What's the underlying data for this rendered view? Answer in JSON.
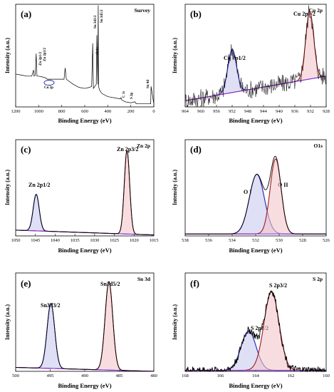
{
  "colors": {
    "blue": "#1f1fb0",
    "red": "#9a1b1b",
    "purple": "#8a2be2",
    "raw": "#000000",
    "shade_blue": "#c9c9ee",
    "shade_red": "#f3c6cc"
  },
  "chart_data": [
    {
      "type": "line",
      "panel_label": "(a)",
      "title": "Survey",
      "xlabel": "Binding Energy (eV)",
      "ylabel": "Intensity (a.u.)",
      "xlim": [
        1200,
        0
      ],
      "xticks": [
        "1200",
        "1000",
        "800",
        "600",
        "400",
        "200",
        "0"
      ],
      "annotations": [
        "Zn 2p1/2",
        "Zn 2p3/2",
        "Cu 2p",
        "O 1s",
        "Sn 3d3/2",
        "Sn 3d5/2",
        "C 1s",
        "S 2p",
        "Sn 4d"
      ],
      "series": [
        {
          "x": [
            1200,
            1150,
            1100,
            1060,
            1045,
            1040,
            1030,
            1022,
            1015,
            1000,
            960,
            935,
            925,
            900,
            850,
            800,
            780,
            770,
            760,
            700,
            650,
            600,
            560,
            540,
            531,
            525,
            500,
            495,
            487,
            483,
            480,
            470,
            450,
            400,
            300,
            290,
            285,
            280,
            250,
            200,
            163,
            160,
            150,
            100,
            90,
            27,
            24,
            0
          ],
          "y": [
            0.32,
            0.31,
            0.3,
            0.3,
            0.36,
            0.3,
            0.31,
            0.52,
            0.3,
            0.3,
            0.29,
            0.28,
            0.27,
            0.27,
            0.27,
            0.27,
            0.27,
            0.38,
            0.27,
            0.22,
            0.19,
            0.18,
            0.19,
            0.2,
            0.62,
            0.18,
            0.22,
            0.7,
            0.22,
            0.99,
            0.2,
            0.16,
            0.13,
            0.1,
            0.08,
            0.08,
            0.09,
            0.07,
            0.05,
            0.04,
            0.05,
            0.04,
            0.03,
            0.03,
            0.03,
            0.03,
            0.2,
            0.03
          ]
        }
      ]
    },
    {
      "type": "line",
      "panel_label": "(b)",
      "title": "Cu 2p",
      "xlabel": "Binding Energy (eV)",
      "xlim": [
        964,
        928
      ],
      "xticks": [
        "964",
        "960",
        "956",
        "952",
        "948",
        "944",
        "940",
        "936",
        "932",
        "928"
      ],
      "annotations": [
        "Cu 2p1/2",
        "Cu 2p3/2"
      ],
      "peaks": [
        {
          "name": "Cu 2p1/2",
          "center": 952.0,
          "fwhm": 2.6,
          "height": 0.42
        },
        {
          "name": "Cu 2p3/2",
          "center": 932.2,
          "fwhm": 2.4,
          "height": 0.66
        }
      ],
      "background": [
        {
          "x": 964,
          "y": 0.06
        },
        {
          "x": 928,
          "y": 0.3
        }
      ],
      "noise_amplitude": 0.09
    },
    {
      "type": "line",
      "panel_label": "(c)",
      "title": "Zn 2p",
      "xlabel": "Binding Energy (eV)",
      "ylabel": "Intensity (a.u.)",
      "xlim": [
        1050,
        1015
      ],
      "xticks": [
        "1050",
        "1045",
        "1040",
        "1035",
        "1030",
        "1025",
        "1020",
        "1015"
      ],
      "annotations": [
        "Zn 2p1/2",
        "Zn 2p3/2"
      ],
      "peaks": [
        {
          "name": "Zn 2p1/2",
          "center": 1044.8,
          "fwhm": 1.8,
          "height": 0.38
        },
        {
          "name": "Zn 2p3/2",
          "center": 1021.8,
          "fwhm": 1.6,
          "height": 0.87
        }
      ],
      "background": [
        {
          "x": 1050,
          "y": 0.06
        },
        {
          "x": 1015,
          "y": 0.01
        }
      ],
      "noise_amplitude": 0.0
    },
    {
      "type": "line",
      "panel_label": "(d)",
      "title": "O1s",
      "xlabel": "Binding Energy (eV)",
      "xlim": [
        538,
        526
      ],
      "xticks": [
        "538",
        "536",
        "534",
        "532",
        "530",
        "528",
        "526"
      ],
      "annotations": [
        "O I",
        "O II"
      ],
      "peaks": [
        {
          "name": "O II",
          "center": 531.9,
          "fwhm": 1.5,
          "height": 0.62
        },
        {
          "name": "O I",
          "center": 530.3,
          "fwhm": 1.1,
          "height": 0.78
        }
      ],
      "background": [
        {
          "x": 538,
          "y": 0.02
        },
        {
          "x": 526,
          "y": 0.02
        }
      ],
      "noise_amplitude": 0.0
    },
    {
      "type": "line",
      "panel_label": "(e)",
      "title": "Sn 3d",
      "xlabel": "Binding Energy (eV)",
      "ylabel": "Intensity (a.u.)",
      "xlim": [
        500,
        480
      ],
      "xticks": [
        "500",
        "495",
        "490",
        "485",
        "480"
      ],
      "annotations": [
        "Sn3d3/2",
        "Sn3d5/2"
      ],
      "peaks": [
        {
          "name": "Sn3d3/2",
          "center": 494.9,
          "fwhm": 1.3,
          "height": 0.66
        },
        {
          "name": "Sn3d5/2",
          "center": 486.5,
          "fwhm": 1.3,
          "height": 0.9
        }
      ],
      "background": [
        {
          "x": 500,
          "y": 0.04
        },
        {
          "x": 480,
          "y": 0.0
        }
      ],
      "noise_amplitude": 0.0
    },
    {
      "type": "line",
      "panel_label": "(f)",
      "title": "S 2p",
      "xlabel": "Binding Energy (eV)",
      "xlim": [
        168,
        160
      ],
      "xticks": [
        "168",
        "166",
        "164",
        "162",
        "160"
      ],
      "annotations": [
        "S 2p1/2",
        "S 2p3/2"
      ],
      "peaks": [
        {
          "name": "S 2p1/2",
          "center": 164.4,
          "fwhm": 1.0,
          "height": 0.4
        },
        {
          "name": "S 2p3/2",
          "center": 163.1,
          "fwhm": 1.0,
          "height": 0.8
        }
      ],
      "background": [
        {
          "x": 168,
          "y": 0.01
        },
        {
          "x": 160,
          "y": 0.01
        }
      ],
      "noise_amplitude": 0.04
    }
  ]
}
